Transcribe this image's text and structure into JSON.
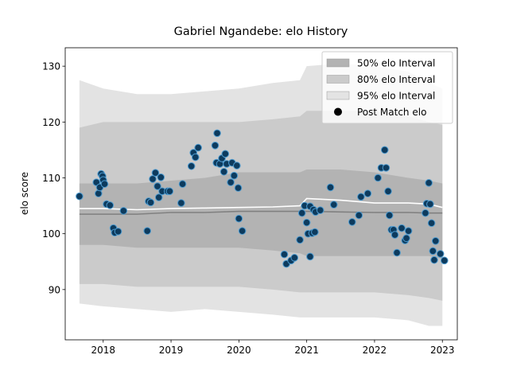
{
  "chart_data": {
    "type": "scatter",
    "title": "Gabriel Ngandebe: elo History",
    "ylabel": "elo score",
    "xlim": [
      2017.44,
      2023.22
    ],
    "ylim": [
      81.0,
      133.3
    ],
    "xticks": [
      2018,
      2019,
      2020,
      2021,
      2022,
      2023
    ],
    "yticks": [
      90,
      100,
      110,
      120,
      130
    ],
    "legend": "upper right",
    "band_x": [
      2017.65,
      2018.0,
      2018.5,
      2019.0,
      2019.5,
      2020.0,
      2020.5,
      2020.9,
      2021.0,
      2021.5,
      2022.0,
      2022.5,
      2022.8,
      2023.0
    ],
    "bands": [
      {
        "name": "95% elo Interval",
        "color": "#e3e3e3",
        "upper": [
          127.5,
          126,
          125,
          125,
          125.5,
          126,
          127,
          127.5,
          130,
          130.5,
          130,
          129,
          127,
          126
        ],
        "lower": [
          87.5,
          87,
          86.5,
          86,
          86.5,
          86,
          85.5,
          85,
          85,
          85,
          85,
          84.5,
          83.5,
          83.5
        ]
      },
      {
        "name": "80% elo Interval",
        "color": "#cbcbcb",
        "upper": [
          119,
          120,
          120,
          120,
          120,
          120,
          120.5,
          121,
          122,
          122,
          122,
          121,
          120,
          119.5
        ],
        "lower": [
          91,
          91,
          90.5,
          90.5,
          90.5,
          90.5,
          90,
          89.5,
          89.5,
          89.5,
          89.5,
          89,
          88.5,
          88
        ]
      },
      {
        "name": "50% elo Interval",
        "color": "#b3b3b3",
        "upper": [
          109,
          109,
          109,
          109.5,
          110,
          111,
          111,
          111,
          111.5,
          111.5,
          111,
          110,
          109.5,
          109
        ],
        "lower": [
          98,
          98,
          97.5,
          97.5,
          97.5,
          97.5,
          97,
          96.5,
          96,
          96,
          96,
          96,
          96,
          95.5
        ]
      }
    ],
    "lines": [
      {
        "color": "#808080",
        "values": [
          103.5,
          103.5,
          103.5,
          103.8,
          103.8,
          104,
          104,
          104,
          104,
          103.9,
          103.8,
          103.8,
          103.7,
          103.7
        ]
      },
      {
        "color": "#ffffff",
        "values": [
          104.5,
          104.5,
          104.3,
          104.5,
          104.6,
          104.7,
          104.8,
          105,
          106.3,
          106,
          105.5,
          105.5,
          105.3,
          104.7
        ]
      }
    ],
    "series": [
      {
        "name": "Post Match elo",
        "color": "#0d3b5e",
        "edge": "#4d9bd0",
        "x": [
          2017.65,
          2017.9,
          2017.93,
          2017.95,
          2017.97,
          2017.99,
          2018.0,
          2018.02,
          2018.05,
          2018.1,
          2018.15,
          2018.17,
          2018.22,
          2018.3,
          2018.65,
          2018.67,
          2018.7,
          2018.73,
          2018.77,
          2018.8,
          2018.82,
          2018.85,
          2018.87,
          2018.95,
          2018.98,
          2019.15,
          2019.17,
          2019.3,
          2019.33,
          2019.36,
          2019.4,
          2019.65,
          2019.67,
          2019.68,
          2019.72,
          2019.75,
          2019.78,
          2019.8,
          2019.82,
          2019.88,
          2019.9,
          2019.93,
          2019.97,
          2019.99,
          2020.0,
          2020.05,
          2020.67,
          2020.7,
          2020.77,
          2020.82,
          2020.9,
          2020.93,
          2020.97,
          2021.0,
          2021.02,
          2021.05,
          2021.05,
          2021.08,
          2021.1,
          2021.12,
          2021.13,
          2021.2,
          2021.35,
          2021.4,
          2021.67,
          2021.77,
          2021.8,
          2021.9,
          2022.05,
          2022.1,
          2022.15,
          2022.17,
          2022.2,
          2022.22,
          2022.25,
          2022.28,
          2022.3,
          2022.33,
          2022.4,
          2022.45,
          2022.47,
          2022.5,
          2022.75,
          2022.77,
          2022.8,
          2022.82,
          2022.84,
          2022.86,
          2022.88,
          2022.9,
          2022.97,
          2023.03
        ],
        "values": [
          106.7,
          109.2,
          107.2,
          108.3,
          110.7,
          110.3,
          109.6,
          108.9,
          105.3,
          105.1,
          101,
          100.2,
          100.4,
          104.1,
          100.5,
          105.8,
          105.6,
          109.8,
          110.9,
          108.5,
          106.5,
          110.1,
          107.6,
          107.6,
          107.6,
          105.5,
          108.9,
          112.1,
          114.5,
          113.7,
          115.4,
          115.8,
          112.7,
          118,
          112.5,
          113.5,
          111.1,
          114.3,
          112.5,
          109.2,
          112.7,
          110.4,
          112.2,
          108.2,
          102.7,
          100.5,
          96.3,
          94.6,
          95.2,
          95.7,
          98.9,
          103.7,
          105,
          102,
          100,
          104.9,
          95.9,
          100.1,
          104.3,
          100.3,
          103.9,
          104.2,
          108.3,
          105.2,
          102.1,
          103.3,
          106.6,
          107.2,
          110,
          111.8,
          115,
          111.8,
          107.6,
          103.3,
          100.7,
          100.7,
          99.8,
          96.6,
          101,
          98.8,
          99.2,
          100.5,
          103.7,
          105.4,
          109.1,
          105.3,
          101.9,
          96.9,
          95.3,
          98.7,
          96.4,
          95.2
        ]
      }
    ]
  }
}
